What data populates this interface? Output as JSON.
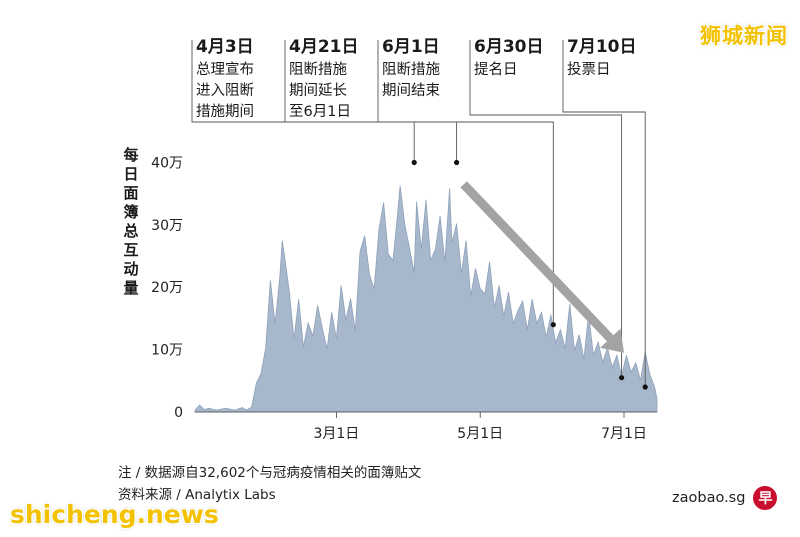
{
  "brand": "狮城新闻",
  "watermark": "shicheng.news",
  "notes": {
    "note": "注 / 数据源自32,602个与冠病疫情相关的面簿贴文",
    "source": "资料来源 / Analytix Labs"
  },
  "zaobao": {
    "text": "zaobao.sg",
    "logo": "早"
  },
  "events": [
    {
      "date": "4月3日",
      "lines": [
        "总理宣布",
        "进入阻断",
        "措施期间"
      ]
    },
    {
      "date": "4月21日",
      "lines": [
        "阻断措施",
        "期间延长",
        "至6月1日"
      ]
    },
    {
      "date": "6月1日",
      "lines": [
        "阻断措施",
        "期间结束"
      ]
    },
    {
      "date": "6月30日",
      "lines": [
        "提名日"
      ]
    },
    {
      "date": "7月10日",
      "lines": [
        "投票日"
      ]
    }
  ],
  "chart_data": {
    "type": "area",
    "ylabel": "每日面簿总互动量",
    "y_tick_labels": [
      "0",
      "10万",
      "20万",
      "30万",
      "40万"
    ],
    "y_ticks": [
      0,
      10,
      20,
      30,
      40
    ],
    "ylim": [
      0,
      42
    ],
    "y_unit_note": "values in 万 (10,000 interactions)",
    "x_tick_labels": [
      "3月1日",
      "5月1日",
      "7月1日"
    ],
    "x_ticks": [
      "2020-03-01",
      "2020-05-01",
      "2020-07-01"
    ],
    "xlim": [
      "2020-01-01",
      "2020-07-15"
    ],
    "grid": false,
    "fill_color": "#a8b8cc",
    "edge_color": "#8ea2ba",
    "arrow_color": "#a3a3a3",
    "event_marks": [
      {
        "date": "2020-04-03",
        "value": 40.0
      },
      {
        "date": "2020-04-21",
        "value": 40.0
      },
      {
        "date": "2020-06-01",
        "value": 14.0
      },
      {
        "date": "2020-06-30",
        "value": 5.5
      },
      {
        "date": "2020-07-10",
        "value": 4.0
      }
    ],
    "trend_arrow": {
      "from": [
        "2020-04-24",
        36.5
      ],
      "to": [
        "2020-07-01",
        9.5
      ]
    },
    "series": [
      {
        "x": [
          "2020-01-01",
          "2020-01-03",
          "2020-01-05",
          "2020-01-07",
          "2020-01-10",
          "2020-01-14",
          "2020-01-18",
          "2020-01-21",
          "2020-01-23",
          "2020-01-25",
          "2020-01-27",
          "2020-01-29",
          "2020-01-31",
          "2020-02-02",
          "2020-02-04",
          "2020-02-06",
          "2020-02-07",
          "2020-02-08",
          "2020-02-10",
          "2020-02-12",
          "2020-02-14",
          "2020-02-16",
          "2020-02-18",
          "2020-02-20",
          "2020-02-22",
          "2020-02-24",
          "2020-02-26",
          "2020-02-28",
          "2020-03-01",
          "2020-03-03",
          "2020-03-05",
          "2020-03-07",
          "2020-03-09",
          "2020-03-11",
          "2020-03-13",
          "2020-03-15",
          "2020-03-17",
          "2020-03-19",
          "2020-03-21",
          "2020-03-23",
          "2020-03-25",
          "2020-03-27",
          "2020-03-28",
          "2020-03-30",
          "2020-04-01",
          "2020-04-03",
          "2020-04-04",
          "2020-04-06",
          "2020-04-08",
          "2020-04-10",
          "2020-04-12",
          "2020-04-14",
          "2020-04-16",
          "2020-04-18",
          "2020-04-19",
          "2020-04-21",
          "2020-04-23",
          "2020-04-25",
          "2020-04-27",
          "2020-04-29",
          "2020-05-01",
          "2020-05-03",
          "2020-05-05",
          "2020-05-07",
          "2020-05-09",
          "2020-05-11",
          "2020-05-13",
          "2020-05-15",
          "2020-05-17",
          "2020-05-19",
          "2020-05-21",
          "2020-05-23",
          "2020-05-25",
          "2020-05-27",
          "2020-05-29",
          "2020-05-31",
          "2020-06-02",
          "2020-06-04",
          "2020-06-06",
          "2020-06-08",
          "2020-06-10",
          "2020-06-12",
          "2020-06-14",
          "2020-06-16",
          "2020-06-18",
          "2020-06-20",
          "2020-06-22",
          "2020-06-24",
          "2020-06-26",
          "2020-06-28",
          "2020-06-30",
          "2020-07-02",
          "2020-07-04",
          "2020-07-06",
          "2020-07-08",
          "2020-07-10",
          "2020-07-12",
          "2020-07-14",
          "2020-07-15"
        ],
        "values": [
          0.3,
          1.1,
          0.4,
          0.6,
          0.3,
          0.6,
          0.3,
          0.7,
          0.3,
          0.8,
          4.6,
          6.2,
          10.3,
          21.1,
          14.2,
          21.8,
          27.5,
          24.9,
          19.3,
          11.7,
          18.1,
          10.4,
          14.3,
          12.2,
          17.1,
          13.5,
          10.1,
          16.0,
          11.8,
          20.3,
          14.7,
          18.2,
          13.0,
          25.7,
          28.3,
          22.1,
          19.7,
          29.2,
          33.6,
          25.3,
          24.3,
          32.0,
          36.3,
          30.1,
          26.3,
          22.4,
          33.7,
          26.1,
          34.0,
          24.3,
          26.1,
          31.4,
          24.0,
          35.9,
          27.1,
          30.2,
          22.2,
          27.5,
          18.6,
          23.0,
          19.8,
          18.9,
          24.1,
          16.7,
          20.3,
          15.4,
          19.2,
          14.2,
          16.2,
          17.8,
          13.2,
          18.1,
          14.2,
          16.0,
          12.0,
          15.6,
          11.1,
          13.2,
          10.2,
          17.3,
          9.8,
          12.4,
          8.5,
          15.7,
          9.1,
          11.2,
          8.0,
          10.3,
          7.2,
          9.1,
          5.8,
          9.1,
          6.4,
          7.9,
          5.1,
          9.6,
          6.0,
          4.0,
          2.1
        ]
      }
    ]
  }
}
